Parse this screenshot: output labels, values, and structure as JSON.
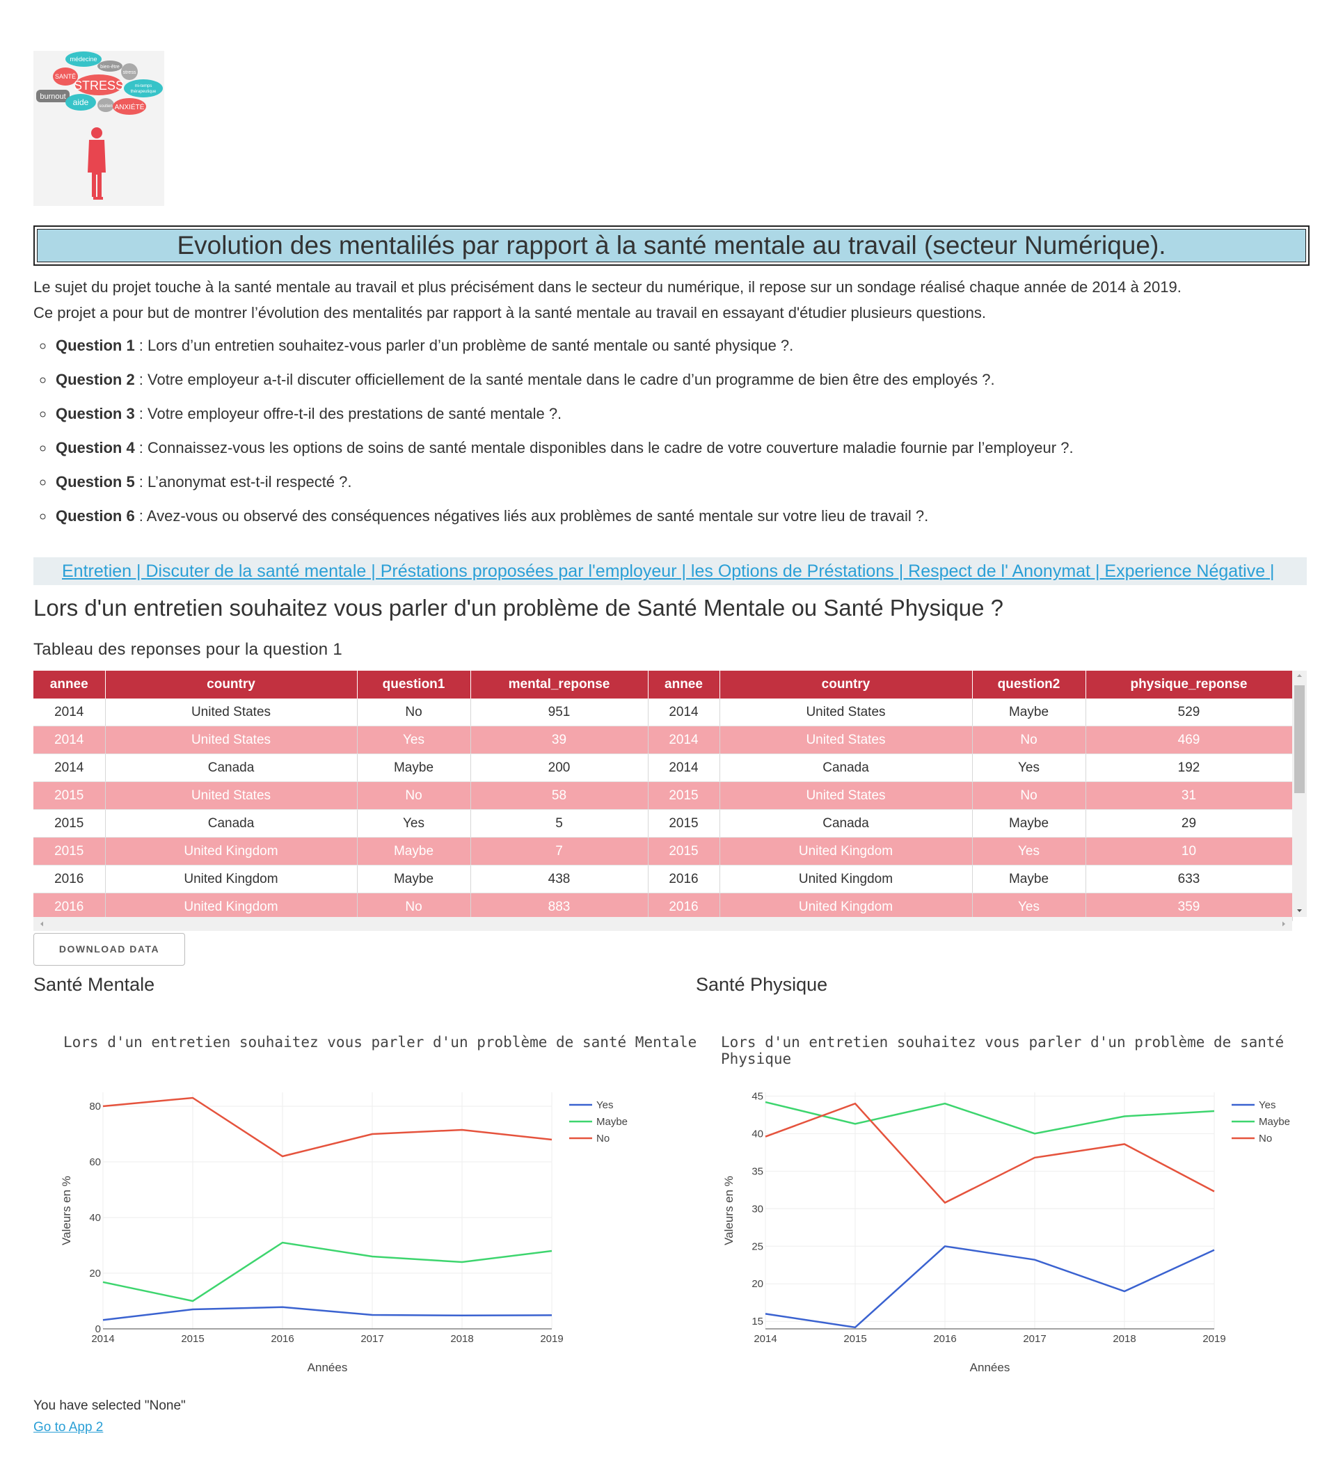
{
  "logo": {
    "words": [
      "médecine",
      "SANTÉ",
      "bien-être",
      "stress",
      "STRESS",
      "burnout",
      "aide",
      "soutien",
      "ANXIÉTÉ",
      "mi-temps thérapeutique"
    ]
  },
  "header": {
    "title": "Evolution des mentalilés par rapport à la santé mentale au travail (secteur Numérique)."
  },
  "intro": {
    "line1": "Le sujet du projet touche à la santé mentale au travail et plus précisément dans le secteur du numérique, il repose sur un sondage réalisé chaque année de 2014 à 2019.",
    "line2": "Ce projet a pour but de montrer l’évolution des mentalités par rapport à la santé mentale au travail en essayant d'étudier plusieurs questions."
  },
  "questions": [
    {
      "label": "Question 1",
      "text": " : Lors d’un entretien souhaitez-vous parler d’un problème de santé mentale ou santé physique ?."
    },
    {
      "label": "Question 2",
      "text": " : Votre employeur a-t-il discuter officiellement de la santé mentale dans le cadre d’un programme de bien être des employés ?."
    },
    {
      "label": "Question 3",
      "text": " : Votre employeur offre-t-il des prestations de santé mentale ?."
    },
    {
      "label": "Question 4",
      "text": " : Connaissez-vous les options de soins de santé mentale disponibles dans le cadre de votre couverture maladie fournie par l’employeur ?."
    },
    {
      "label": "Question 5",
      "text": " : L’anonymat est-t-il respecté ?."
    },
    {
      "label": "Question 6",
      "text": " : Avez-vous ou observé des conséquences négatives liés aux problèmes de santé mentale sur votre lieu de travail ?."
    }
  ],
  "nav": {
    "links": [
      "Entretien",
      "Discuter de la santé mentale",
      "Préstations proposées par l'employeur",
      "les Options de Préstations",
      "Respect de l' Anonymat",
      "Experience Négative"
    ],
    "separator": " | "
  },
  "section": {
    "title": "Lors d'un entretien souhaitez vous parler d'un problème de Santé Mentale ou Santé Physique ?",
    "table_caption": "Tableau des reponses pour la question 1"
  },
  "table": {
    "columns": [
      "annee",
      "country",
      "question1",
      "mental_reponse",
      "annee",
      "country",
      "question2",
      "physique_reponse"
    ],
    "rows": [
      [
        "2014",
        "United States",
        "No",
        "951",
        "2014",
        "United States",
        "Maybe",
        "529"
      ],
      [
        "2014",
        "United States",
        "Yes",
        "39",
        "2014",
        "United States",
        "No",
        "469"
      ],
      [
        "2014",
        "Canada",
        "Maybe",
        "200",
        "2014",
        "Canada",
        "Yes",
        "192"
      ],
      [
        "2015",
        "United States",
        "No",
        "58",
        "2015",
        "United States",
        "No",
        "31"
      ],
      [
        "2015",
        "Canada",
        "Yes",
        "5",
        "2015",
        "Canada",
        "Maybe",
        "29"
      ],
      [
        "2015",
        "United Kingdom",
        "Maybe",
        "7",
        "2015",
        "United Kingdom",
        "Yes",
        "10"
      ],
      [
        "2016",
        "United Kingdom",
        "Maybe",
        "438",
        "2016",
        "United Kingdom",
        "Maybe",
        "633"
      ],
      [
        "2016",
        "United Kingdom",
        "No",
        "883",
        "2016",
        "United Kingdom",
        "Yes",
        "359"
      ]
    ],
    "download_label": "DOWNLOAD DATA"
  },
  "colors": {
    "header_bg": "#c23140",
    "stripe": "#f4a5ab",
    "title_bg": "#add8e6",
    "link": "#2a9fd6",
    "yes": "#3a62d0",
    "maybe": "#3dd56e",
    "no": "#e5533d"
  },
  "charts": {
    "mental_heading": "Santé Mentale",
    "physique_heading": "Santé Physique"
  },
  "chart_data": [
    {
      "type": "line",
      "title": "Lors d'un entretien souhaitez vous parler d'un problème de santé Mentale",
      "xlabel": "Années",
      "ylabel": "Valeurs en %",
      "x": [
        2014,
        2015,
        2016,
        2017,
        2018,
        2019
      ],
      "ylim": [
        0,
        85
      ],
      "yticks": [
        0,
        20,
        40,
        60,
        80
      ],
      "series": [
        {
          "name": "Yes",
          "values": [
            3.2,
            7.0,
            7.8,
            5.0,
            4.8,
            4.9
          ]
        },
        {
          "name": "Maybe",
          "values": [
            16.8,
            10.0,
            31.0,
            26.0,
            24.0,
            28.0
          ]
        },
        {
          "name": "No",
          "values": [
            80.0,
            83.0,
            62.0,
            70.0,
            71.5,
            68.0
          ]
        }
      ],
      "legend": "top-right",
      "grid": true
    },
    {
      "type": "line",
      "title": "Lors d'un entretien souhaitez vous parler d'un problème de santé Physique",
      "xlabel": "Années",
      "ylabel": "Valeurs en %",
      "x": [
        2014,
        2015,
        2016,
        2017,
        2018,
        2019
      ],
      "ylim": [
        14,
        45.5
      ],
      "yticks": [
        15,
        20,
        25,
        30,
        35,
        40,
        45
      ],
      "series": [
        {
          "name": "Yes",
          "values": [
            16.0,
            14.2,
            25.0,
            23.2,
            19.0,
            24.5
          ]
        },
        {
          "name": "Maybe",
          "values": [
            44.2,
            41.3,
            44.0,
            40.0,
            42.3,
            43.0
          ]
        },
        {
          "name": "No",
          "values": [
            39.6,
            44.0,
            30.8,
            36.8,
            38.6,
            32.3
          ]
        }
      ],
      "legend": "top-right",
      "grid": true
    }
  ],
  "footer": {
    "selected_text": "You have selected \"None\"",
    "link_text": "Go to App 2"
  }
}
